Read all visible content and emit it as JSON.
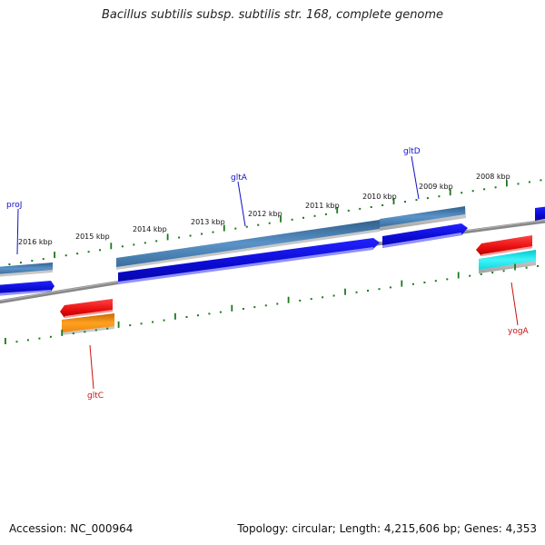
{
  "title": "Bacillus subtilis subsp. subtilis str. 168, complete genome",
  "footer": {
    "accession_text": "Accession: NC_000964",
    "topology_text": "Topology: circular; Length: 4,215,606 bp; Genes: 4,353"
  },
  "scale": {
    "labels": [
      "2016 kbp",
      "2015 kbp",
      "2014 kbp",
      "2013 kbp",
      "2012 kbp",
      "2011 kbp",
      "2010 kbp",
      "2009 kbp",
      "2008 kbp"
    ],
    "tick_color": "#1a7a1a"
  },
  "gene_labels": [
    {
      "name": "proJ",
      "strand": "forward",
      "color": "#1010cc"
    },
    {
      "name": "gltA",
      "strand": "forward",
      "color": "#1010cc"
    },
    {
      "name": "gltD",
      "strand": "forward",
      "color": "#1010cc"
    },
    {
      "name": "gltC",
      "strand": "reverse",
      "color": "#cc1010"
    },
    {
      "name": "yogA",
      "strand": "reverse",
      "color": "#cc1010"
    }
  ],
  "colors": {
    "backbone": "#808080",
    "cds_forward": "#1010e0",
    "gene_forward": "#4a7fb0",
    "cds_reverse": "#ee1111",
    "gene_reverse_orange": "#f08c10",
    "gene_reverse_cyan": "#10e0e8",
    "feature_shadow": "#bbbbbb"
  }
}
